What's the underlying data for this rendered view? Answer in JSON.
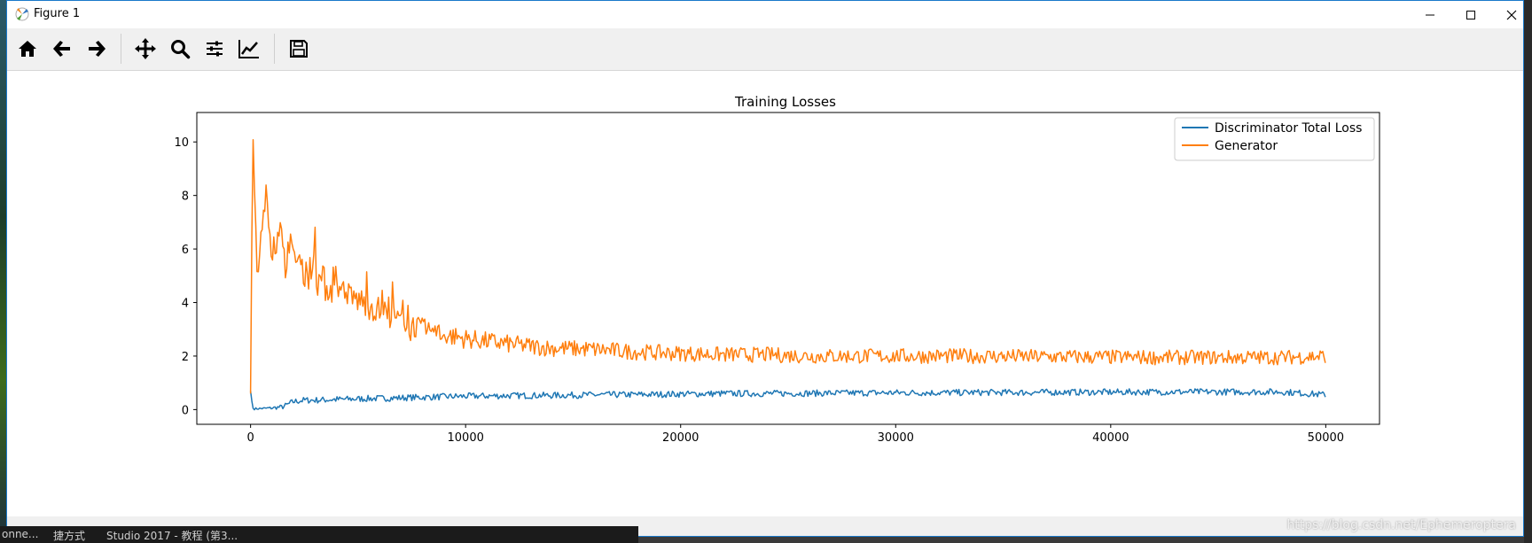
{
  "window": {
    "title": "Figure 1"
  },
  "toolbar": {
    "tools": [
      "home-icon",
      "back-arrow-icon",
      "forward-arrow-icon",
      "pan-icon",
      "zoom-icon",
      "subplots-config-icon",
      "edit-axis-icon",
      "save-icon"
    ]
  },
  "colors": {
    "discriminator": "#1f77b4",
    "generator": "#ff7f0e"
  },
  "taskbar": {
    "item1": "onne...",
    "item2": "捷方式",
    "item3": "Studio 2017 - 教程 (第3..."
  },
  "watermark": "https://blog.csdn.net/Ephemeroptera",
  "chart_data": {
    "type": "line",
    "title": "Training Losses",
    "xlabel": "",
    "ylabel": "",
    "xlim": [
      -2500,
      52500
    ],
    "ylim": [
      -0.55,
      11.1
    ],
    "xticks": [
      0,
      10000,
      20000,
      30000,
      40000,
      50000
    ],
    "yticks": [
      0,
      2,
      4,
      6,
      8,
      10
    ],
    "legend": "top-right",
    "grid": false,
    "series": [
      {
        "name": "Discriminator Total Loss",
        "color": "#1f77b4",
        "x": [
          0,
          100,
          200,
          500,
          1000,
          1500,
          2000,
          2500,
          3000,
          4000,
          5000,
          6000,
          7000,
          8000,
          9000,
          10000,
          12000,
          14000,
          16000,
          18000,
          20000,
          22000,
          24000,
          26000,
          28000,
          30000,
          32000,
          34000,
          36000,
          38000,
          40000,
          42000,
          44000,
          46000,
          48000,
          50000
        ],
        "values": [
          0.7,
          0.05,
          0.03,
          0.04,
          0.06,
          0.1,
          0.3,
          0.35,
          0.35,
          0.38,
          0.4,
          0.42,
          0.44,
          0.46,
          0.48,
          0.5,
          0.52,
          0.53,
          0.55,
          0.56,
          0.58,
          0.6,
          0.6,
          0.61,
          0.62,
          0.63,
          0.63,
          0.64,
          0.64,
          0.65,
          0.65,
          0.66,
          0.66,
          0.66,
          0.66,
          0.55
        ]
      },
      {
        "name": "Generator",
        "color": "#ff7f0e",
        "x": [
          0,
          100,
          200,
          300,
          500,
          700,
          1000,
          1500,
          2000,
          2500,
          3000,
          4000,
          5000,
          6000,
          7000,
          8000,
          9000,
          10000,
          12000,
          14000,
          16000,
          18000,
          20000,
          22000,
          24000,
          26000,
          28000,
          30000,
          32000,
          34000,
          36000,
          38000,
          40000,
          42000,
          44000,
          46000,
          48000,
          50000
        ],
        "values": [
          0.6,
          10.6,
          8.0,
          5.5,
          6.2,
          7.5,
          6.5,
          6.3,
          5.6,
          5.3,
          5.0,
          4.3,
          4.1,
          3.7,
          3.3,
          3.0,
          2.8,
          2.65,
          2.45,
          2.3,
          2.25,
          2.15,
          2.1,
          2.05,
          2.05,
          2.0,
          2.0,
          2.0,
          2.0,
          2.0,
          1.98,
          1.97,
          1.96,
          1.95,
          1.95,
          1.95,
          1.95,
          2.0
        ]
      }
    ]
  }
}
